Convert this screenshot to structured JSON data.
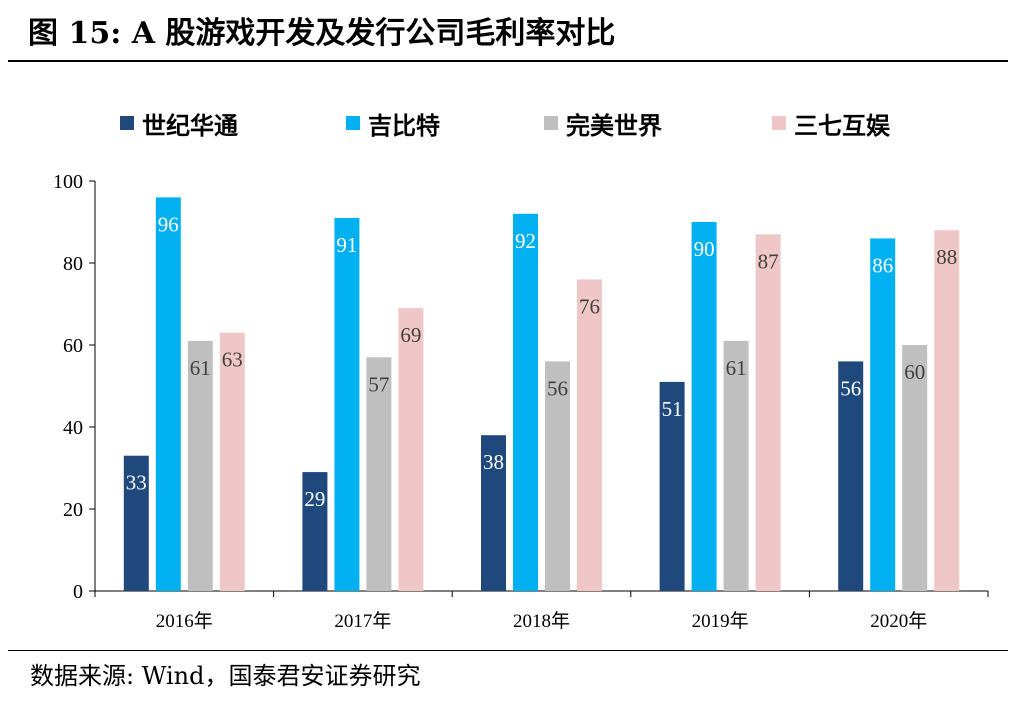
{
  "title": "图 15:  A 股游戏开发及发行公司毛利率对比",
  "source": "数据来源:  Wind，国泰君安证券研究",
  "chart_data": {
    "type": "bar",
    "categories": [
      "2016年",
      "2017年",
      "2018年",
      "2019年",
      "2020年"
    ],
    "series": [
      {
        "name": "世纪华通",
        "color": "#1f497d",
        "values": [
          33,
          29,
          38,
          51,
          56
        ]
      },
      {
        "name": "吉比特",
        "color": "#00b0f0",
        "values": [
          96,
          91,
          92,
          90,
          86
        ]
      },
      {
        "name": "完美世界",
        "color": "#bfbfbf",
        "values": [
          61,
          57,
          56,
          61,
          60
        ]
      },
      {
        "name": "三七互娱",
        "color": "#efc7c7",
        "values": [
          63,
          69,
          76,
          87,
          88
        ]
      }
    ],
    "yticks": [
      "0",
      "20",
      "40",
      "60",
      "80",
      "100"
    ],
    "ylim": [
      0,
      100
    ],
    "legend_position": "top",
    "grid": false,
    "data_labels": true
  }
}
